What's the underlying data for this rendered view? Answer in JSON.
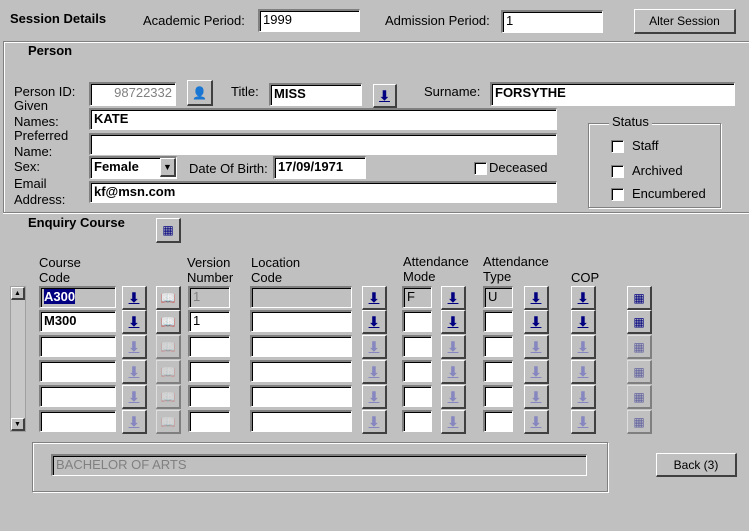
{
  "session": {
    "title": "Session Details",
    "academic_period_label": "Academic Period:",
    "academic_period": "1999",
    "admission_period_label": "Admission Period:",
    "admission_period": "1",
    "alter_session": "Alter Session"
  },
  "person": {
    "title": "Person",
    "person_id_label": "Person ID:",
    "person_id": "98722332",
    "title_label": "Title:",
    "title_value": "MISS",
    "surname_label": "Surname:",
    "surname": "FORSYTHE",
    "given_label_1": "Given",
    "given_label_2": "Names:",
    "given_names": "KATE",
    "preferred_label_1": "Preferred",
    "preferred_label_2": "Name:",
    "preferred_name": "",
    "sex_label": "Sex:",
    "sex": "Female",
    "dob_label": "Date Of Birth:",
    "dob": "17/09/1971",
    "deceased_label": "Deceased",
    "deceased": false,
    "email_label_1": "Email",
    "email_label_2": "Address:",
    "email": "kf@msn.com"
  },
  "status": {
    "title": "Status",
    "items": [
      {
        "label": "Staff",
        "checked": false
      },
      {
        "label": "Archived",
        "checked": false
      },
      {
        "label": "Encumbered",
        "checked": false
      }
    ]
  },
  "enquiry": {
    "title": "Enquiry Course",
    "headers": {
      "course_1": "Course",
      "course_2": "Code",
      "version_1": "Version",
      "version_2": "Number",
      "location_1": "Location",
      "location_2": "Code",
      "mode_1": "Attendance",
      "mode_2": "Mode",
      "type_1": "Attendance",
      "type_2": "Type",
      "cop": "COP"
    },
    "rows": [
      {
        "course": "A300",
        "version": "1",
        "location": "",
        "mode": "F",
        "type": "U",
        "active": true,
        "selected": true
      },
      {
        "course": "M300",
        "version": "1",
        "location": "",
        "mode": "",
        "type": "",
        "active": true,
        "selected": false
      },
      {
        "course": "",
        "version": "",
        "location": "",
        "mode": "",
        "type": "",
        "active": false
      },
      {
        "course": "",
        "version": "",
        "location": "",
        "mode": "",
        "type": "",
        "active": false
      },
      {
        "course": "",
        "version": "",
        "location": "",
        "mode": "",
        "type": "",
        "active": false
      },
      {
        "course": "",
        "version": "",
        "location": "",
        "mode": "",
        "type": "",
        "active": false
      }
    ],
    "description": "BACHELOR OF ARTS"
  },
  "back_button": "Back (3)",
  "icons": {
    "lov": "down-arrow-icon",
    "person_search": "person-search-icon",
    "course_search": "book-search-icon",
    "calendar": "calendar-icon"
  }
}
